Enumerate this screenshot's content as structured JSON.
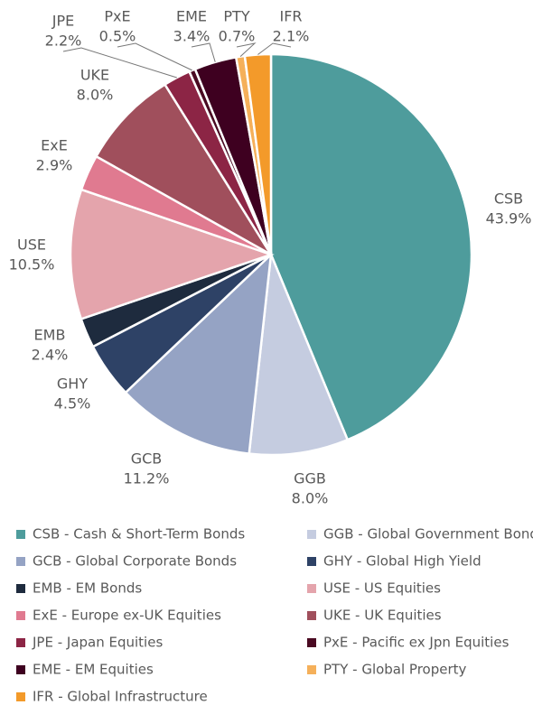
{
  "chart_data": {
    "type": "pie",
    "categories": [
      "CSB",
      "GGB",
      "GCB",
      "GHY",
      "EMB",
      "USE",
      "ExE",
      "UKE",
      "JPE",
      "PxE",
      "EME",
      "PTY",
      "IFR"
    ],
    "legend": [
      "CSB - Cash & Short-Term Bonds",
      "GGB - Global Government Bonds",
      "GCB - Global Corporate Bonds",
      "GHY - Global High Yield",
      "EMB - EM Bonds",
      "USE - US Equities",
      "ExE - Europe ex-UK Equities",
      "UKE - UK Equities",
      "JPE - Japan Equities",
      "PxE - Pacific ex Jpn Equities",
      "EME - EM Equities",
      "PTY - Global Property",
      "IFR - Global Infrastructure"
    ],
    "values": [
      43.9,
      8.0,
      11.2,
      4.5,
      2.4,
      10.5,
      2.9,
      8.0,
      2.2,
      0.5,
      3.4,
      0.7,
      2.1
    ],
    "value_labels": [
      "43.9%",
      "8.0%",
      "11.2%",
      "4.5%",
      "2.4%",
      "10.5%",
      "2.9%",
      "8.0%",
      "2.2%",
      "0.5%",
      "3.4%",
      "0.7%",
      "2.1%"
    ],
    "colors": [
      "#4e9c9c",
      "#c5cce0",
      "#95a3c4",
      "#2e4266",
      "#1e2b3e",
      "#e4a4ac",
      "#e07a90",
      "#a04f5c",
      "#8c2545",
      "#4a0a22",
      "#3e0020",
      "#f5b05a",
      "#f39a2a"
    ],
    "legend_position": "bottom"
  }
}
